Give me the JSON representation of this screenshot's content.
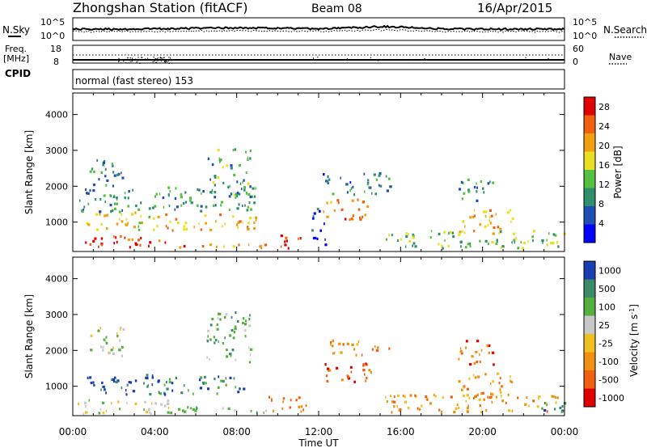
{
  "header": {
    "station": "Zhongshan Station (fitACF)",
    "beam": "Beam 08",
    "date": "16/Apr/2015"
  },
  "nsky_panel": {
    "left_label": "N.Sky",
    "right_label": "N.Search",
    "left_ticks": [
      "10^5",
      "10^0"
    ],
    "right_ticks": [
      "10^5",
      "10^0"
    ]
  },
  "freq_panel": {
    "left_label_1": "Freq.",
    "left_label_2": "[MHz]",
    "right_label": "Nave",
    "left_ticks": [
      "18",
      "8"
    ],
    "right_ticks": [
      "60",
      "0"
    ],
    "cpid_label": "CPID"
  },
  "cpid_text": "normal (fast stereo) 153",
  "chart_data": [
    {
      "type": "heatmap",
      "title": "",
      "xlabel": "",
      "ylabel": "Slant Range [km]",
      "quantity": "Power",
      "x_ticks": [
        "00:00",
        "04:00",
        "08:00",
        "12:00",
        "16:00",
        "20:00",
        "00:00"
      ],
      "xlim": [
        0,
        24
      ],
      "y_ticks": [
        1000,
        2000,
        3000,
        4000
      ],
      "ylim": [
        180,
        4600
      ],
      "colorbar": {
        "label": "Power [dB]",
        "ticks": [
          4,
          8,
          12,
          16,
          20,
          24,
          28
        ],
        "range": [
          0,
          30
        ],
        "colors": [
          "#0000ff",
          "#1f4fb4",
          "#2f8f6a",
          "#56c040",
          "#e8e020",
          "#f0a010",
          "#f06010",
          "#e00000"
        ]
      },
      "regions": [
        {
          "t0": 0.1,
          "t1": 4.6,
          "r0": 300,
          "r1": 650,
          "level": 26
        },
        {
          "t0": 4.6,
          "t1": 11.3,
          "r0": 300,
          "r1": 420,
          "level": 22
        },
        {
          "t0": 10.0,
          "t1": 11.4,
          "r0": 300,
          "r1": 700,
          "level": 28
        },
        {
          "t0": 0.5,
          "t1": 4.0,
          "r0": 800,
          "r1": 1300,
          "level": 18
        },
        {
          "t0": 4.0,
          "t1": 9.0,
          "r0": 800,
          "r1": 1250,
          "level": 20
        },
        {
          "t0": 12.2,
          "t1": 14.6,
          "r0": 1100,
          "r1": 1700,
          "level": 22
        },
        {
          "t0": 0.3,
          "t1": 9.0,
          "r0": 1300,
          "r1": 2000,
          "level": 10
        },
        {
          "t0": 0.8,
          "t1": 2.5,
          "r0": 2000,
          "r1": 2800,
          "level": 9
        },
        {
          "t0": 6.5,
          "t1": 8.7,
          "r0": 1700,
          "r1": 3100,
          "level": 11
        },
        {
          "t0": 12.0,
          "t1": 15.5,
          "r0": 1800,
          "r1": 2400,
          "level": 8
        },
        {
          "t0": 15.0,
          "t1": 24.0,
          "r0": 300,
          "r1": 800,
          "level": 13
        },
        {
          "t0": 18.8,
          "t1": 21.5,
          "r0": 700,
          "r1": 1400,
          "level": 20
        },
        {
          "t0": 18.8,
          "t1": 20.5,
          "r0": 1600,
          "r1": 2300,
          "level": 9
        },
        {
          "t0": 11.6,
          "t1": 12.3,
          "r0": 300,
          "r1": 1400,
          "level": 5
        }
      ]
    },
    {
      "type": "heatmap",
      "title": "",
      "xlabel": "Time UT",
      "ylabel": "Slant Range [km]",
      "quantity": "Velocity",
      "x_ticks": [
        "00:00",
        "04:00",
        "08:00",
        "12:00",
        "16:00",
        "20:00",
        "00:00"
      ],
      "xlim": [
        0,
        24
      ],
      "y_ticks": [
        1000,
        2000,
        3000,
        4000
      ],
      "ylim": [
        180,
        4600
      ],
      "colorbar": {
        "label": "Velocity [m s",
        "label_sup": "-1",
        "label_close": "]",
        "ticks": [
          1000,
          500,
          100,
          25,
          -25,
          -100,
          -500,
          -1000
        ],
        "colors": [
          "#1a3fb0",
          "#3a8a6a",
          "#56b040",
          "#c8c8c8",
          "#f0c020",
          "#f09010",
          "#f06010",
          "#e00000"
        ]
      },
      "regions": [
        {
          "t0": 0.3,
          "t1": 4.6,
          "r0": 800,
          "r1": 1350,
          "level": 0
        },
        {
          "t0": 4.2,
          "t1": 8.5,
          "r0": 800,
          "r1": 1300,
          "level": 1
        },
        {
          "t0": 0.2,
          "t1": 4.8,
          "r0": 250,
          "r1": 650,
          "level": 3
        },
        {
          "t0": 4.8,
          "t1": 9.5,
          "r0": 250,
          "r1": 450,
          "level": 2
        },
        {
          "t0": 9.5,
          "t1": 11.4,
          "r0": 300,
          "r1": 800,
          "level": 5
        },
        {
          "t0": 12.2,
          "t1": 14.6,
          "r0": 1100,
          "r1": 1700,
          "level": 6
        },
        {
          "t0": 0.8,
          "t1": 2.5,
          "r0": 1800,
          "r1": 2700,
          "level": 3
        },
        {
          "t0": 6.5,
          "t1": 8.7,
          "r0": 1700,
          "r1": 3100,
          "level": 2
        },
        {
          "t0": 12.0,
          "t1": 15.5,
          "r0": 1900,
          "r1": 2300,
          "level": 5
        },
        {
          "t0": 15.0,
          "t1": 24.0,
          "r0": 300,
          "r1": 800,
          "level": 5
        },
        {
          "t0": 18.8,
          "t1": 21.5,
          "r0": 700,
          "r1": 1400,
          "level": 5
        },
        {
          "t0": 18.8,
          "t1": 20.5,
          "r0": 1600,
          "r1": 2300,
          "level": 6
        },
        {
          "t0": 22.5,
          "t1": 24.0,
          "r0": 300,
          "r1": 700,
          "level": 1
        }
      ]
    }
  ]
}
